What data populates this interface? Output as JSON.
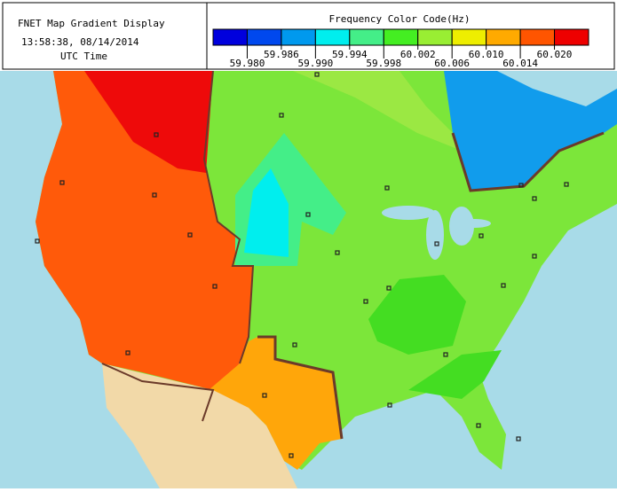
{
  "header": {
    "title": "FNET Map Gradient Display",
    "timestamp": "13:58:38, 08/14/2014",
    "time_zone": "UTC Time"
  },
  "legend": {
    "title": "Frequency Color Code(Hz)",
    "colors": [
      "#0000dd",
      "#0048ee",
      "#0099ee",
      "#00eeee",
      "#44ee88",
      "#44ee22",
      "#99ee33",
      "#eeee00",
      "#ffaa00",
      "#ff5500",
      "#ee0000"
    ],
    "labels": [
      "59.980",
      "59.986",
      "59.990",
      "59.994",
      "59.998",
      "60.002",
      "60.006",
      "60.010",
      "60.014",
      "60.020"
    ]
  }
}
